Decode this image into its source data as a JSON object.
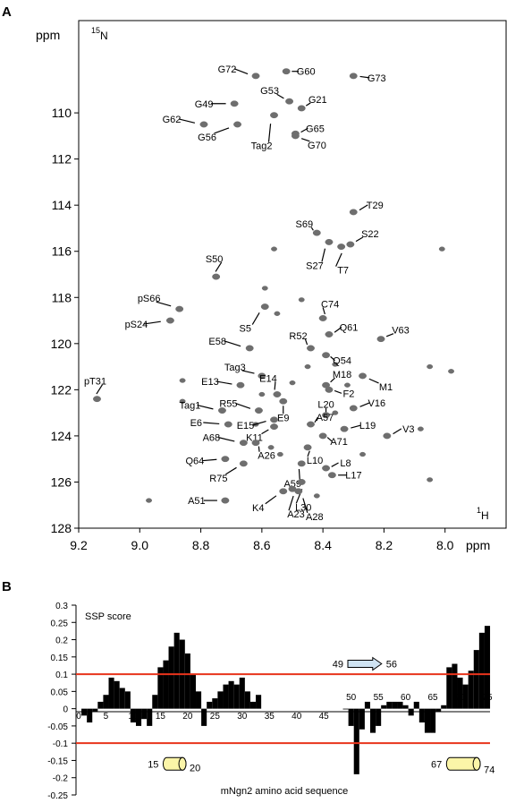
{
  "panel_a_label": "A",
  "panel_b_label": "B",
  "chart_data": [
    {
      "type": "scatter",
      "panel": "A",
      "x_unit_label": "ppm",
      "y_unit_label": "ppm",
      "x_nucleus": {
        "sup": "1",
        "base": "H"
      },
      "y_nucleus": {
        "sup": "15",
        "base": "N"
      },
      "xlim": [
        9.2,
        7.8
      ],
      "ylim": [
        128,
        106
      ],
      "x_ticks": [
        9.2,
        9.0,
        8.8,
        8.6,
        8.4,
        8.2,
        8.0
      ],
      "x_tick_labels": [
        "9.2",
        "9.0",
        "8.8",
        "8.6",
        "8.4",
        "8.2",
        "8.0"
      ],
      "y_ticks": [
        110,
        112,
        114,
        116,
        118,
        120,
        122,
        124,
        126,
        128
      ],
      "y_tick_labels": [
        "110",
        "112",
        "114",
        "116",
        "118",
        "120",
        "122",
        "124",
        "126",
        "128"
      ],
      "peak_color": "#6e6e6e",
      "assigned_peaks": [
        {
          "label": "G72",
          "x": 8.62,
          "y": 108.4
        },
        {
          "label": "G60",
          "x": 8.52,
          "y": 108.2
        },
        {
          "label": "G73",
          "x": 8.3,
          "y": 108.4
        },
        {
          "label": "G53",
          "x": 8.51,
          "y": 109.5
        },
        {
          "label": "G21",
          "x": 8.47,
          "y": 109.8
        },
        {
          "label": "G49",
          "x": 8.69,
          "y": 109.6
        },
        {
          "label": "G62",
          "x": 8.79,
          "y": 110.5
        },
        {
          "label": "G56",
          "x": 8.68,
          "y": 110.5
        },
        {
          "label": "Tag2",
          "x": 8.56,
          "y": 110.1
        },
        {
          "label": "G65",
          "x": 8.49,
          "y": 110.9
        },
        {
          "label": "G70",
          "x": 8.49,
          "y": 111.0
        },
        {
          "label": "T29",
          "x": 8.3,
          "y": 114.3
        },
        {
          "label": "S69",
          "x": 8.42,
          "y": 115.2
        },
        {
          "label": "S22",
          "x": 8.31,
          "y": 115.7
        },
        {
          "label": "S27",
          "x": 8.38,
          "y": 115.6
        },
        {
          "label": "T7",
          "x": 8.34,
          "y": 115.8
        },
        {
          "label": "S50",
          "x": 8.75,
          "y": 117.1
        },
        {
          "label": "pS66",
          "x": 8.87,
          "y": 118.5
        },
        {
          "label": "pS24",
          "x": 8.9,
          "y": 119.0
        },
        {
          "label": "C74",
          "x": 8.4,
          "y": 118.9
        },
        {
          "label": "S5",
          "x": 8.59,
          "y": 118.4
        },
        {
          "label": "R52",
          "x": 8.44,
          "y": 120.2
        },
        {
          "label": "Q61",
          "x": 8.38,
          "y": 119.6
        },
        {
          "label": "V63",
          "x": 8.21,
          "y": 119.8
        },
        {
          "label": "E58",
          "x": 8.64,
          "y": 120.2
        },
        {
          "label": "Q54",
          "x": 8.39,
          "y": 120.5
        },
        {
          "label": "Tag3",
          "x": 8.6,
          "y": 121.4
        },
        {
          "label": "pT31",
          "x": 9.14,
          "y": 122.4
        },
        {
          "label": "E13",
          "x": 8.67,
          "y": 121.8
        },
        {
          "label": "E14",
          "x": 8.55,
          "y": 122.2
        },
        {
          "label": "M18",
          "x": 8.39,
          "y": 121.8
        },
        {
          "label": "F2",
          "x": 8.38,
          "y": 122.0
        },
        {
          "label": "M1",
          "x": 8.27,
          "y": 121.4
        },
        {
          "label": "R55",
          "x": 8.61,
          "y": 122.9
        },
        {
          "label": "Tag1",
          "x": 8.73,
          "y": 122.9
        },
        {
          "label": "E9",
          "x": 8.53,
          "y": 122.5
        },
        {
          "label": "L20",
          "x": 8.39,
          "y": 123.1
        },
        {
          "label": "V16",
          "x": 8.3,
          "y": 122.8
        },
        {
          "label": "E15",
          "x": 8.56,
          "y": 123.3
        },
        {
          "label": "E6",
          "x": 8.71,
          "y": 123.5
        },
        {
          "label": "K11",
          "x": 8.56,
          "y": 123.6
        },
        {
          "label": "A57",
          "x": 8.44,
          "y": 123.5
        },
        {
          "label": "L19",
          "x": 8.33,
          "y": 123.7
        },
        {
          "label": "A68",
          "x": 8.66,
          "y": 124.3
        },
        {
          "label": "A26",
          "x": 8.62,
          "y": 124.3
        },
        {
          "label": "A71",
          "x": 8.4,
          "y": 124.0
        },
        {
          "label": "V3",
          "x": 8.19,
          "y": 124.0
        },
        {
          "label": "Q64",
          "x": 8.72,
          "y": 125.0
        },
        {
          "label": "L10",
          "x": 8.45,
          "y": 124.5
        },
        {
          "label": "L8",
          "x": 8.39,
          "y": 125.4
        },
        {
          "label": "A59",
          "x": 8.47,
          "y": 125.2
        },
        {
          "label": "R75",
          "x": 8.66,
          "y": 125.2
        },
        {
          "label": "L17",
          "x": 8.37,
          "y": 125.7
        },
        {
          "label": "L30",
          "x": 8.47,
          "y": 126.0
        },
        {
          "label": "A51",
          "x": 8.72,
          "y": 126.8
        },
        {
          "label": "K4",
          "x": 8.53,
          "y": 126.4
        },
        {
          "label": "A23",
          "x": 8.5,
          "y": 126.3
        },
        {
          "label": "A28",
          "x": 8.48,
          "y": 126.4
        }
      ],
      "unassigned_peaks": [
        {
          "x": 8.01,
          "y": 115.9
        },
        {
          "x": 8.05,
          "y": 121.0
        },
        {
          "x": 7.98,
          "y": 121.2
        },
        {
          "x": 8.08,
          "y": 123.7
        },
        {
          "x": 8.05,
          "y": 125.9
        },
        {
          "x": 8.97,
          "y": 126.8
        },
        {
          "x": 8.86,
          "y": 121.6
        },
        {
          "x": 8.86,
          "y": 122.5
        },
        {
          "x": 8.59,
          "y": 117.6
        },
        {
          "x": 8.55,
          "y": 118.7
        },
        {
          "x": 8.45,
          "y": 121.0
        },
        {
          "x": 8.36,
          "y": 120.9
        },
        {
          "x": 8.32,
          "y": 121.8
        },
        {
          "x": 8.6,
          "y": 122.2
        },
        {
          "x": 8.5,
          "y": 121.7
        },
        {
          "x": 8.57,
          "y": 124.5
        },
        {
          "x": 8.62,
          "y": 123.5
        },
        {
          "x": 8.54,
          "y": 124.8
        },
        {
          "x": 8.42,
          "y": 126.6
        },
        {
          "x": 8.36,
          "y": 123.0
        },
        {
          "x": 8.27,
          "y": 124.8
        },
        {
          "x": 8.56,
          "y": 115.9
        },
        {
          "x": 8.47,
          "y": 118.1
        }
      ]
    },
    {
      "type": "bar",
      "panel": "B",
      "title": "SSP score",
      "xlabel": "mNgn2 amino acid sequence",
      "xlim": [
        0,
        75
      ],
      "ylim": [
        -0.25,
        0.3
      ],
      "y_ticks": [
        0.3,
        0.25,
        0.2,
        0.15,
        0.1,
        0.05,
        0,
        -0.05,
        -0.1,
        -0.15,
        -0.2,
        -0.25
      ],
      "y_tick_labels": [
        "0.3",
        "0.25",
        "0.2",
        "0.15",
        "0.1",
        "0.05",
        "0",
        "-0.05",
        "-0.1",
        "-0.15",
        "-0.2",
        "-0.25"
      ],
      "x_tick_labels_left": [
        "0",
        "5",
        "10",
        "15",
        "20",
        "25",
        "30",
        "35",
        "40",
        "45"
      ],
      "x_tick_labels_right": [
        "50",
        "55",
        "60",
        "65",
        "70",
        "75"
      ],
      "x_tick_values_left": [
        0,
        5,
        10,
        15,
        20,
        25,
        30,
        35,
        40,
        45
      ],
      "x_tick_values_right": [
        50,
        55,
        60,
        65,
        70,
        75
      ],
      "threshold_lines": [
        0.1,
        -0.1
      ],
      "threshold_color": "#e8341c",
      "bar_color": "#000000",
      "positions": [
        1,
        2,
        3,
        4,
        5,
        6,
        7,
        8,
        9,
        10,
        11,
        12,
        13,
        14,
        15,
        16,
        17,
        18,
        19,
        20,
        21,
        22,
        23,
        24,
        25,
        26,
        27,
        28,
        29,
        30,
        31,
        32,
        33,
        34,
        35,
        36,
        37,
        38,
        39,
        40,
        41,
        42,
        43,
        44,
        45,
        46,
        47,
        48,
        49,
        50,
        51,
        52,
        53,
        54,
        55,
        56,
        57,
        58,
        59,
        60,
        61,
        62,
        63,
        64,
        65,
        66,
        67,
        68,
        69,
        70,
        71,
        72,
        73,
        74,
        75
      ],
      "values": [
        -0.02,
        -0.04,
        -0.01,
        0.02,
        0.04,
        0.09,
        0.08,
        0.06,
        0.05,
        -0.04,
        -0.05,
        -0.03,
        -0.05,
        0.04,
        0.12,
        0.14,
        0.18,
        0.22,
        0.2,
        0.16,
        0.1,
        0.05,
        -0.05,
        0.02,
        0.03,
        0.05,
        0.07,
        0.08,
        0.07,
        0.09,
        0.05,
        0.02,
        0.04,
        null,
        null,
        null,
        null,
        null,
        null,
        null,
        null,
        null,
        null,
        null,
        null,
        null,
        null,
        null,
        0.0,
        -0.05,
        -0.19,
        -0.06,
        0.02,
        -0.07,
        -0.05,
        0.01,
        0.02,
        0.02,
        0.02,
        0.01,
        -0.02,
        0.02,
        -0.04,
        -0.07,
        -0.07,
        -0.01,
        0.01,
        0.12,
        0.13,
        0.09,
        0.07,
        0.11,
        0.17,
        0.22,
        0.24
      ],
      "annotations": {
        "strand": {
          "start_label": "49",
          "end_label": "56",
          "start": 49,
          "end": 56,
          "y": 0.13,
          "fill": "#cfe3f2"
        },
        "helices": [
          {
            "start_label": "15",
            "end_label": "20",
            "start": 15,
            "end": 20,
            "y": -0.16,
            "fill": "#fbf5a8"
          },
          {
            "start_label": "67",
            "end_label": "74",
            "start": 67,
            "end": 74,
            "y": -0.16,
            "fill": "#fbf5a8"
          }
        ]
      }
    }
  ]
}
